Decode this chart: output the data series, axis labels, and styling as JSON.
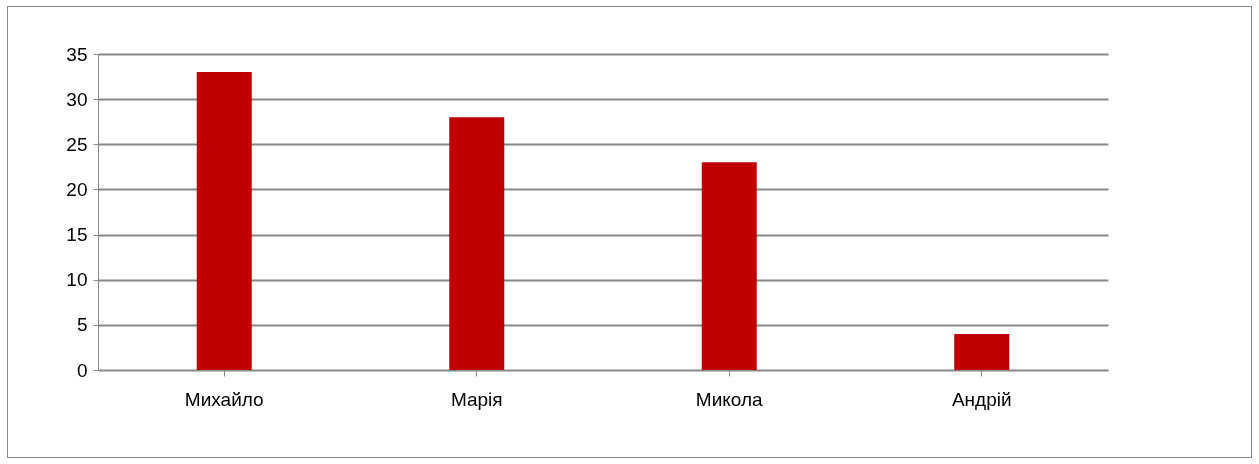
{
  "chart_data": {
    "type": "bar",
    "categories": [
      "Михайло",
      "Марія",
      "Микола",
      "Андрій"
    ],
    "values": [
      33,
      28,
      23,
      4
    ],
    "color": "#c00000",
    "ylim": [
      0,
      35
    ],
    "yticks": [
      0,
      5,
      10,
      15,
      20,
      25,
      30,
      35
    ],
    "grid": "y"
  }
}
